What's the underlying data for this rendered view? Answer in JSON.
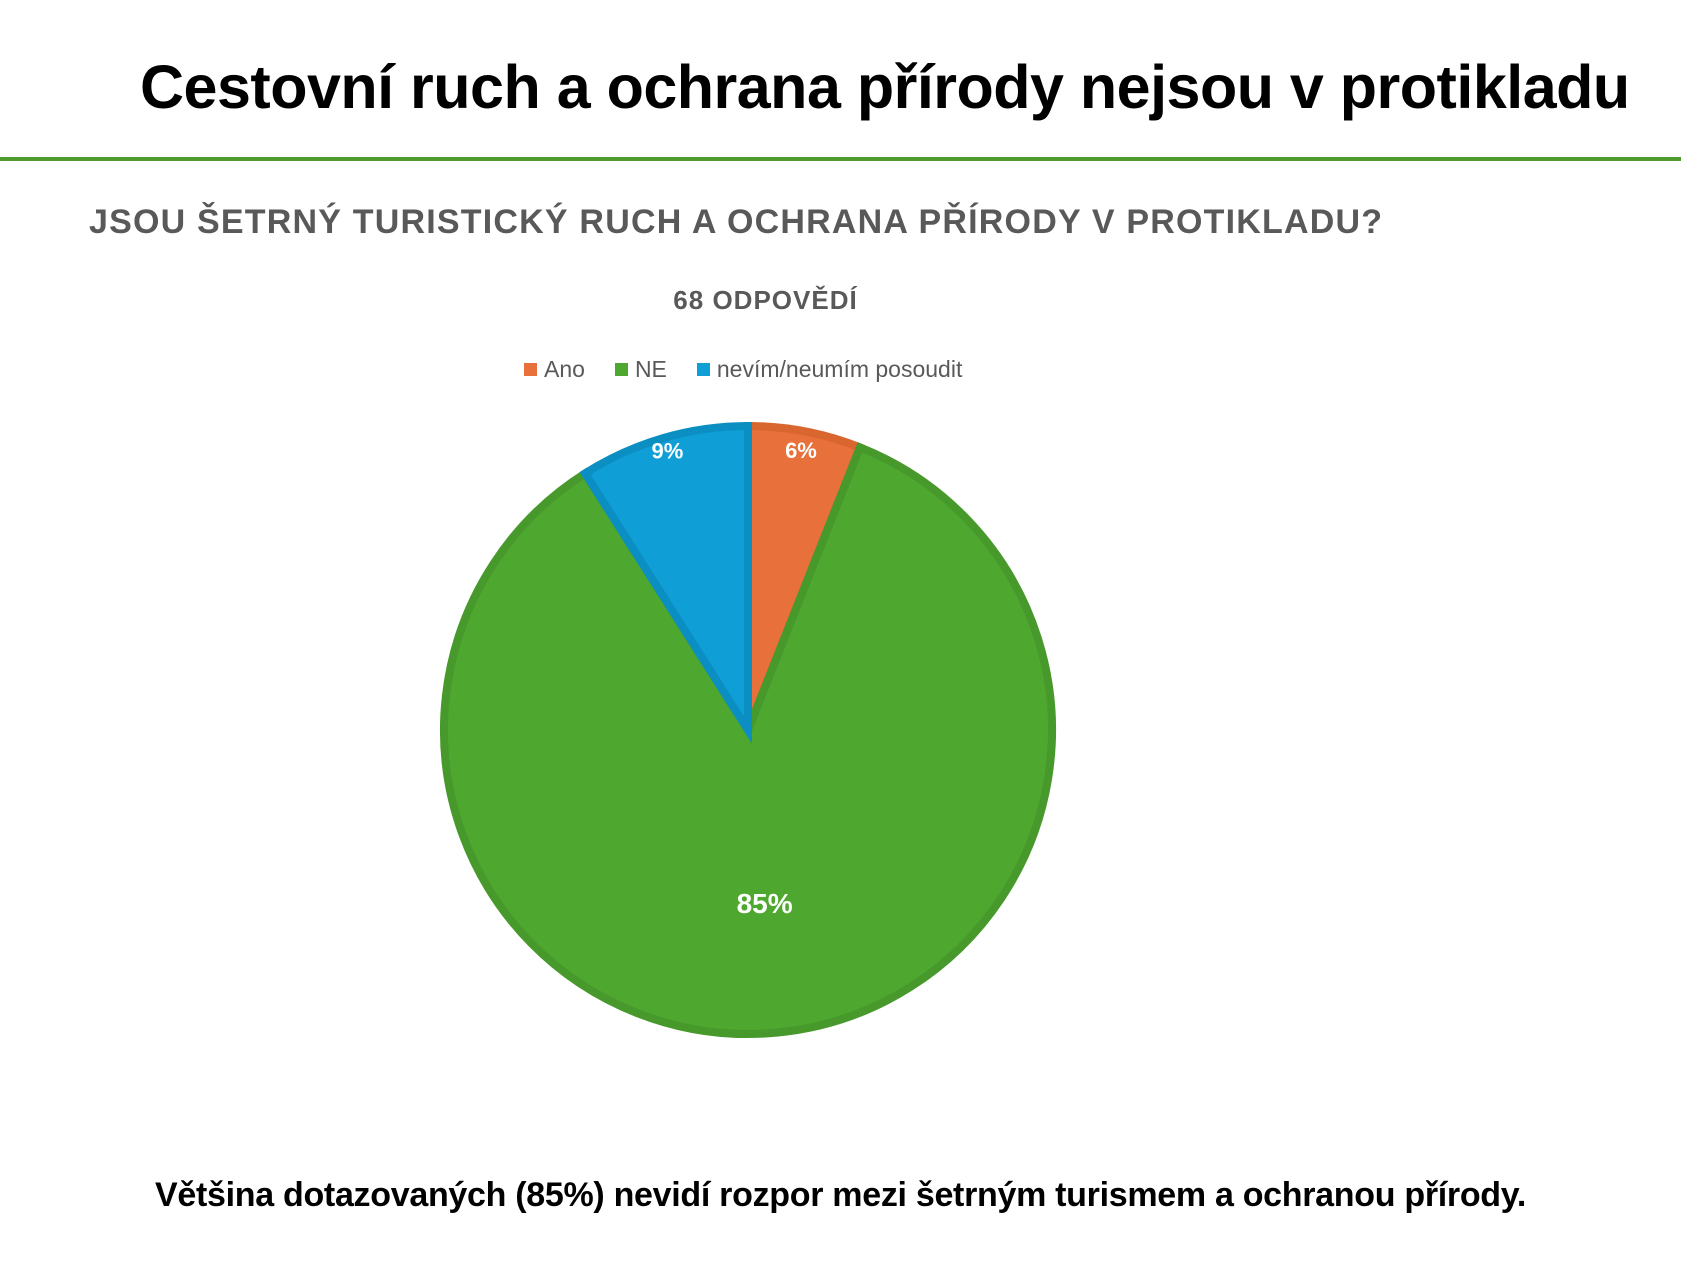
{
  "slide": {
    "title": "Cestovní ruch a ochrana přírody nejsou v protikladu",
    "conclusion": "Většina dotazovaných (85%) nevidí rozpor mezi šetrným turismem a ochranou přírody.",
    "accent_color": "#4f9a2c"
  },
  "chart_data": {
    "type": "pie",
    "title": "JSOU ŠETRNÝ TURISTICKÝ RUCH A OCHRANA PŘÍRODY V PROTIKLADU?",
    "subtitle": "68 ODPOVĚDÍ",
    "legend_position": "top",
    "categories": [
      "Ano",
      "NE",
      "nevím/neumím posoudit"
    ],
    "values": [
      6,
      85,
      9
    ],
    "labels": [
      "6%",
      "85%",
      "9%"
    ],
    "colors": [
      "#e8703a",
      "#4ea72e",
      "#0f9ed5"
    ],
    "border_colors": [
      "#d9662f",
      "#46992a",
      "#0b8fc2"
    ]
  }
}
